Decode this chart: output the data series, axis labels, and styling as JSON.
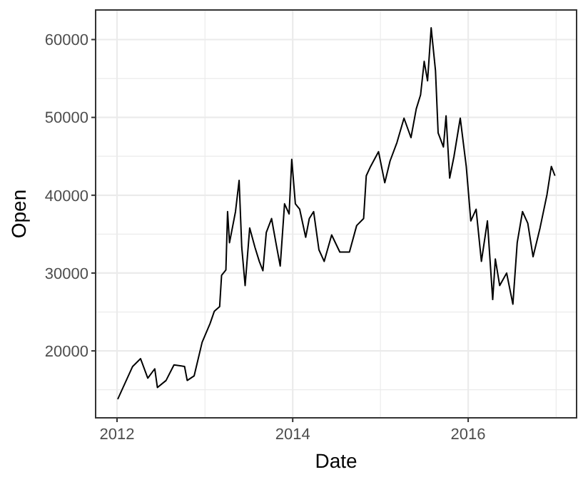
{
  "chart_data": {
    "type": "line",
    "xlabel": "Date",
    "ylabel": "Open",
    "xlim": [
      "2011-10-04",
      "2017-03-27"
    ],
    "ylim": [
      11400,
      63800
    ],
    "xticks": [
      {
        "value": "2012-01-01",
        "label": "2012"
      },
      {
        "value": "2013-01-01",
        "label": null
      },
      {
        "value": "2014-01-01",
        "label": "2014"
      },
      {
        "value": "2015-01-01",
        "label": null
      },
      {
        "value": "2016-01-01",
        "label": "2016"
      },
      {
        "value": "2017-01-01",
        "label": null
      }
    ],
    "yticks": [
      {
        "value": 15000,
        "label": null
      },
      20000,
      {
        "value": 25000,
        "label": null
      },
      30000,
      {
        "value": 35000,
        "label": null
      },
      40000,
      {
        "value": 45000,
        "label": null
      },
      50000,
      {
        "value": 55000,
        "label": null
      },
      60000
    ],
    "grid": true,
    "series": [
      {
        "color": "#000000",
        "line_style": "solid",
        "marker": "none",
        "x": [
          "2012-01-04",
          "2012-03-06",
          "2012-04-08",
          "2012-05-08",
          "2012-06-06",
          "2012-06-17",
          "2012-07-23",
          "2012-08-25",
          "2012-10-08",
          "2012-10-19",
          "2012-11-17",
          "2012-12-20",
          "2013-01-22",
          "2013-02-09",
          "2013-03-03",
          "2013-03-11",
          "2013-03-29",
          "2013-04-05",
          "2013-04-13",
          "2013-05-08",
          "2013-05-23",
          "2013-06-03",
          "2013-06-17",
          "2013-07-06",
          "2013-07-28",
          "2013-08-15",
          "2013-08-30",
          "2013-09-13",
          "2013-10-05",
          "2013-10-23",
          "2013-11-10",
          "2013-11-28",
          "2013-12-17",
          "2013-12-28",
          "2014-01-12",
          "2014-01-30",
          "2014-02-24",
          "2014-03-11",
          "2014-03-29",
          "2014-04-20",
          "2014-05-12",
          "2014-06-12",
          "2014-07-16",
          "2014-08-25",
          "2014-09-24",
          "2014-10-23",
          "2014-11-03",
          "2014-11-21",
          "2014-12-24",
          "2015-01-19",
          "2015-02-10",
          "2015-03-11",
          "2015-04-09",
          "2015-05-08",
          "2015-05-30",
          "2015-06-17",
          "2015-07-02",
          "2015-07-16",
          "2015-07-31",
          "2015-08-18",
          "2015-08-29",
          "2015-09-20",
          "2015-10-01",
          "2015-10-16",
          "2015-11-03",
          "2015-11-29",
          "2015-12-24",
          "2016-01-12",
          "2016-02-03",
          "2016-02-25",
          "2016-03-21",
          "2016-04-12",
          "2016-04-23",
          "2016-05-11",
          "2016-06-09",
          "2016-07-05",
          "2016-07-23",
          "2016-08-14",
          "2016-09-05",
          "2016-09-27",
          "2016-10-26",
          "2016-11-24",
          "2016-12-12",
          "2016-12-27"
        ],
        "values": [
          13800,
          18000,
          19000,
          16500,
          17700,
          15300,
          16200,
          18200,
          18000,
          16200,
          16800,
          21100,
          23500,
          25100,
          25700,
          29700,
          30400,
          37900,
          33900,
          37900,
          41900,
          33300,
          28400,
          35800,
          33300,
          31500,
          30300,
          35200,
          37000,
          33900,
          30900,
          38900,
          37600,
          44600,
          38900,
          38200,
          34600,
          37000,
          37900,
          33000,
          31500,
          34900,
          32700,
          32700,
          36100,
          37000,
          42500,
          43700,
          45600,
          41600,
          44400,
          46800,
          49900,
          47400,
          51100,
          52900,
          57200,
          54700,
          61500,
          56000,
          48000,
          46200,
          50200,
          42200,
          45000,
          49900,
          43700,
          36700,
          38200,
          31500,
          36700,
          26600,
          31800,
          28400,
          30000,
          26000,
          33900,
          37900,
          36400,
          32100,
          35800,
          40100,
          43700,
          42500
        ]
      }
    ]
  }
}
